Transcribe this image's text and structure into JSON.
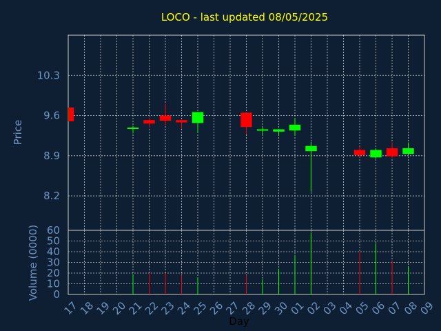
{
  "chart_data": [
    {
      "type": "candlestick",
      "title": "LOCO - last updated 08/05/2025",
      "ylabel": "Price",
      "xlabel": "Day",
      "ylim": [
        7.6,
        11.0
      ],
      "yticks": [
        "10.3",
        "9.6",
        "8.9",
        "8.2"
      ],
      "ytick_values": [
        10.3,
        9.6,
        8.9,
        8.2
      ],
      "grid": true,
      "x_ticks": [
        "17",
        "18",
        "19",
        "20",
        "21",
        "22",
        "23",
        "24",
        "25",
        "26",
        "27",
        "28",
        "29",
        "30",
        "01",
        "02",
        "03",
        "04",
        "05",
        "06",
        "07",
        "08",
        "09"
      ],
      "candles": [
        {
          "day": "17",
          "open": 9.5,
          "high": 9.74,
          "low": 9.5,
          "close": 9.74,
          "color": "up-partial"
        },
        {
          "day": "21",
          "open": 9.38,
          "high": 9.42,
          "low": 9.29,
          "close": 9.39
        },
        {
          "day": "22",
          "open": 9.52,
          "high": 9.56,
          "low": 9.39,
          "close": 9.46
        },
        {
          "day": "23",
          "open": 9.6,
          "high": 9.8,
          "low": 9.43,
          "close": 9.51
        },
        {
          "day": "24",
          "open": 9.52,
          "high": 9.52,
          "low": 9.37,
          "close": 9.48
        },
        {
          "day": "25",
          "open": 9.47,
          "high": 9.66,
          "low": 9.3,
          "close": 9.66
        },
        {
          "day": "28",
          "open": 9.65,
          "high": 9.65,
          "low": 9.27,
          "close": 9.4
        },
        {
          "day": "29",
          "open": 9.34,
          "high": 9.4,
          "low": 9.27,
          "close": 9.36
        },
        {
          "day": "30",
          "open": 9.32,
          "high": 9.36,
          "low": 9.25,
          "close": 9.36
        },
        {
          "day": "01",
          "open": 9.34,
          "high": 9.56,
          "low": 9.25,
          "close": 9.44
        },
        {
          "day": "02",
          "open": 8.98,
          "high": 9.14,
          "low": 8.27,
          "close": 9.07
        },
        {
          "day": "05",
          "open": 9.0,
          "high": 9.06,
          "low": 8.87,
          "close": 8.91
        },
        {
          "day": "06",
          "open": 8.87,
          "high": 9.03,
          "low": 8.85,
          "close": 9.0
        },
        {
          "day": "07",
          "open": 9.03,
          "high": 9.13,
          "low": 8.86,
          "close": 8.89
        },
        {
          "day": "08",
          "open": 8.93,
          "high": 9.13,
          "low": 8.93,
          "close": 9.03
        }
      ]
    },
    {
      "type": "bar",
      "ylabel": "Volume (0000)",
      "ylim": [
        0,
        60
      ],
      "yticks": [
        "60",
        "50",
        "40",
        "30",
        "20",
        "10",
        "0"
      ],
      "ytick_values": [
        60,
        50,
        40,
        30,
        20,
        10,
        0
      ],
      "grid": true,
      "bars": [
        {
          "day": "21",
          "value": 19,
          "dir": "up"
        },
        {
          "day": "22",
          "value": 20,
          "dir": "down"
        },
        {
          "day": "23",
          "value": 20,
          "dir": "down"
        },
        {
          "day": "24",
          "value": 18,
          "dir": "down"
        },
        {
          "day": "25",
          "value": 16,
          "dir": "up"
        },
        {
          "day": "28",
          "value": 18,
          "dir": "down"
        },
        {
          "day": "29",
          "value": 14,
          "dir": "up"
        },
        {
          "day": "30",
          "value": 24,
          "dir": "up"
        },
        {
          "day": "01",
          "value": 37,
          "dir": "up"
        },
        {
          "day": "02",
          "value": 58,
          "dir": "up"
        },
        {
          "day": "05",
          "value": 40,
          "dir": "down"
        },
        {
          "day": "06",
          "value": 48,
          "dir": "up"
        },
        {
          "day": "07",
          "value": 32,
          "dir": "down"
        },
        {
          "day": "08",
          "value": 26,
          "dir": "up"
        }
      ]
    }
  ],
  "colors": {
    "background": "#0f1f33",
    "grid": "#c8c8c8",
    "up": "#00ff00",
    "down": "#ff0000",
    "text": "#6f95c4",
    "title": "#ffff00"
  }
}
